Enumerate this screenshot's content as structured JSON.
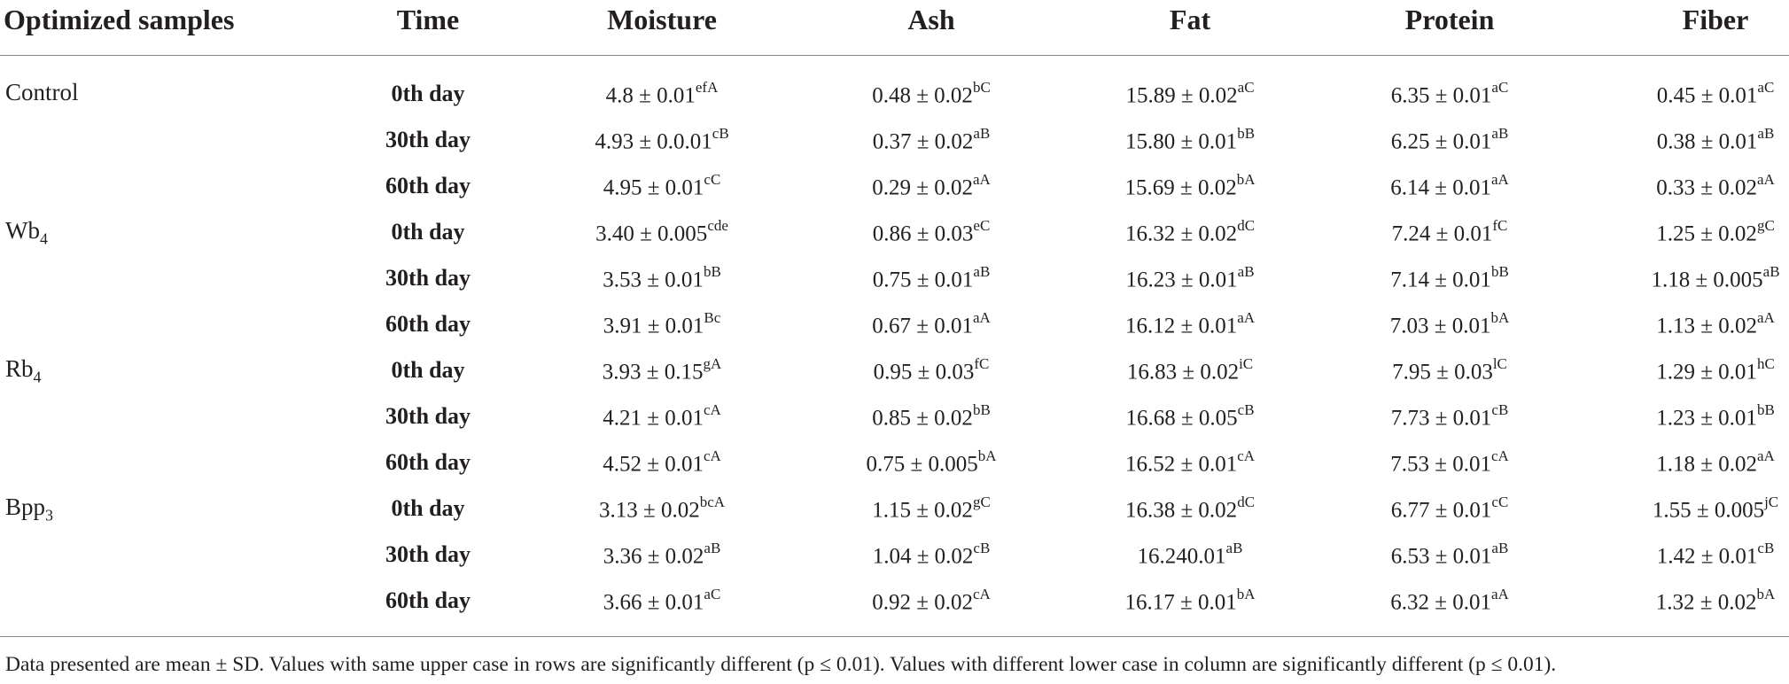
{
  "headers": [
    "Optimized samples",
    "Time",
    "Moisture",
    "Ash",
    "Fat",
    "Protein",
    "Fiber"
  ],
  "rows": [
    {
      "sample": "Control",
      "time": "0th day",
      "moisture": [
        "4.8 ± 0.01",
        "efA"
      ],
      "ash": [
        "0.48 ± 0.02",
        "bC"
      ],
      "fat": [
        "15.89 ± 0.02",
        "aC"
      ],
      "protein": [
        "6.35 ± 0.01",
        "aC"
      ],
      "fiber": [
        "0.45 ± 0.01",
        "aC"
      ]
    },
    {
      "sample": "",
      "time": "30th day",
      "moisture": [
        "4.93 ± 0.0.01",
        "cB"
      ],
      "ash": [
        "0.37 ± 0.02",
        "aB"
      ],
      "fat": [
        "15.80 ± 0.01",
        "bB"
      ],
      "protein": [
        "6.25 ± 0.01",
        "aB"
      ],
      "fiber": [
        "0.38 ± 0.01",
        "aB"
      ]
    },
    {
      "sample": "",
      "time": "60th day",
      "moisture": [
        "4.95 ± 0.01",
        "cC"
      ],
      "ash": [
        "0.29 ± 0.02",
        "aA"
      ],
      "fat": [
        "15.69 ± 0.02",
        "bA"
      ],
      "protein": [
        "6.14 ± 0.01",
        "aA"
      ],
      "fiber": [
        "0.33 ± 0.02",
        "aA"
      ]
    },
    {
      "sample": "Wb",
      "sample_sub": "4",
      "time": "0th day",
      "moisture": [
        "3.40 ± 0.005",
        "cde"
      ],
      "ash": [
        "0.86 ± 0.03",
        "eC"
      ],
      "fat": [
        "16.32 ± 0.02",
        "dC"
      ],
      "protein": [
        "7.24 ± 0.01",
        "fC"
      ],
      "fiber": [
        "1.25 ± 0.02",
        "gC"
      ]
    },
    {
      "sample": "",
      "time": "30th day",
      "moisture": [
        "3.53 ± 0.01",
        "bB"
      ],
      "ash": [
        "0.75 ± 0.01",
        "aB"
      ],
      "fat": [
        "16.23 ± 0.01",
        "aB"
      ],
      "protein": [
        "7.14 ± 0.01",
        "bB"
      ],
      "fiber": [
        "1.18 ± 0.005",
        "aB"
      ]
    },
    {
      "sample": "",
      "time": "60th day",
      "moisture": [
        "3.91 ± 0.01",
        "Bc"
      ],
      "ash": [
        "0.67 ± 0.01",
        "aA"
      ],
      "fat": [
        "16.12 ± 0.01",
        "aA"
      ],
      "protein": [
        "7.03 ± 0.01",
        "bA"
      ],
      "fiber": [
        "1.13 ± 0.02",
        "aA"
      ]
    },
    {
      "sample": "Rb",
      "sample_sub": "4",
      "time": "0th day",
      "moisture": [
        "3.93 ± 0.15",
        "gA"
      ],
      "ash": [
        "0.95 ± 0.03",
        "fC"
      ],
      "fat": [
        "16.83 ± 0.02",
        "iC"
      ],
      "protein": [
        "7.95 ± 0.03",
        "lC"
      ],
      "fiber": [
        "1.29 ± 0.01",
        "hC"
      ]
    },
    {
      "sample": "",
      "time": "30th day",
      "moisture": [
        "4.21 ± 0.01",
        "cA"
      ],
      "ash": [
        "0.85 ± 0.02",
        "bB"
      ],
      "fat": [
        "16.68 ± 0.05",
        "cB"
      ],
      "protein": [
        "7.73 ± 0.01",
        "cB"
      ],
      "fiber": [
        "1.23 ± 0.01",
        "bB"
      ]
    },
    {
      "sample": "",
      "time": "60th day",
      "moisture": [
        "4.52 ± 0.01",
        "cA"
      ],
      "ash": [
        "0.75 ± 0.005",
        "bA"
      ],
      "fat": [
        "16.52 ± 0.01",
        "cA"
      ],
      "protein": [
        "7.53 ± 0.01",
        "cA"
      ],
      "fiber": [
        "1.18 ± 0.02",
        "aA"
      ]
    },
    {
      "sample": "Bpp",
      "sample_sub": "3",
      "time": "0th day",
      "moisture": [
        "3.13 ± 0.02",
        "bcA"
      ],
      "ash": [
        "1.15 ± 0.02",
        "gC"
      ],
      "fat": [
        "16.38 ± 0.02",
        "dC"
      ],
      "protein": [
        "6.77 ± 0.01",
        "cC"
      ],
      "fiber": [
        "1.55 ± 0.005",
        "jC"
      ]
    },
    {
      "sample": "",
      "time": "30th day",
      "moisture": [
        "3.36 ± 0.02",
        "aB"
      ],
      "ash": [
        "1.04 ± 0.02",
        "cB"
      ],
      "fat": [
        "16.240.01",
        "aB"
      ],
      "protein": [
        "6.53 ± 0.01",
        "aB"
      ],
      "fiber": [
        "1.42 ± 0.01",
        "cB"
      ]
    },
    {
      "sample": "",
      "time": "60th day",
      "moisture": [
        "3.66 ± 0.01",
        "aC"
      ],
      "ash": [
        "0.92 ± 0.02",
        "cA"
      ],
      "fat": [
        "16.17 ± 0.01",
        "bA"
      ],
      "protein": [
        "6.32 ± 0.01",
        "aA"
      ],
      "fiber": [
        "1.32 ± 0.02",
        "bA"
      ]
    }
  ],
  "footnote": "Data presented are mean ± SD. Values with same upper case in rows are significantly different (p ≤ 0.01). Values with different lower case in column are significantly different (p ≤ 0.01)."
}
